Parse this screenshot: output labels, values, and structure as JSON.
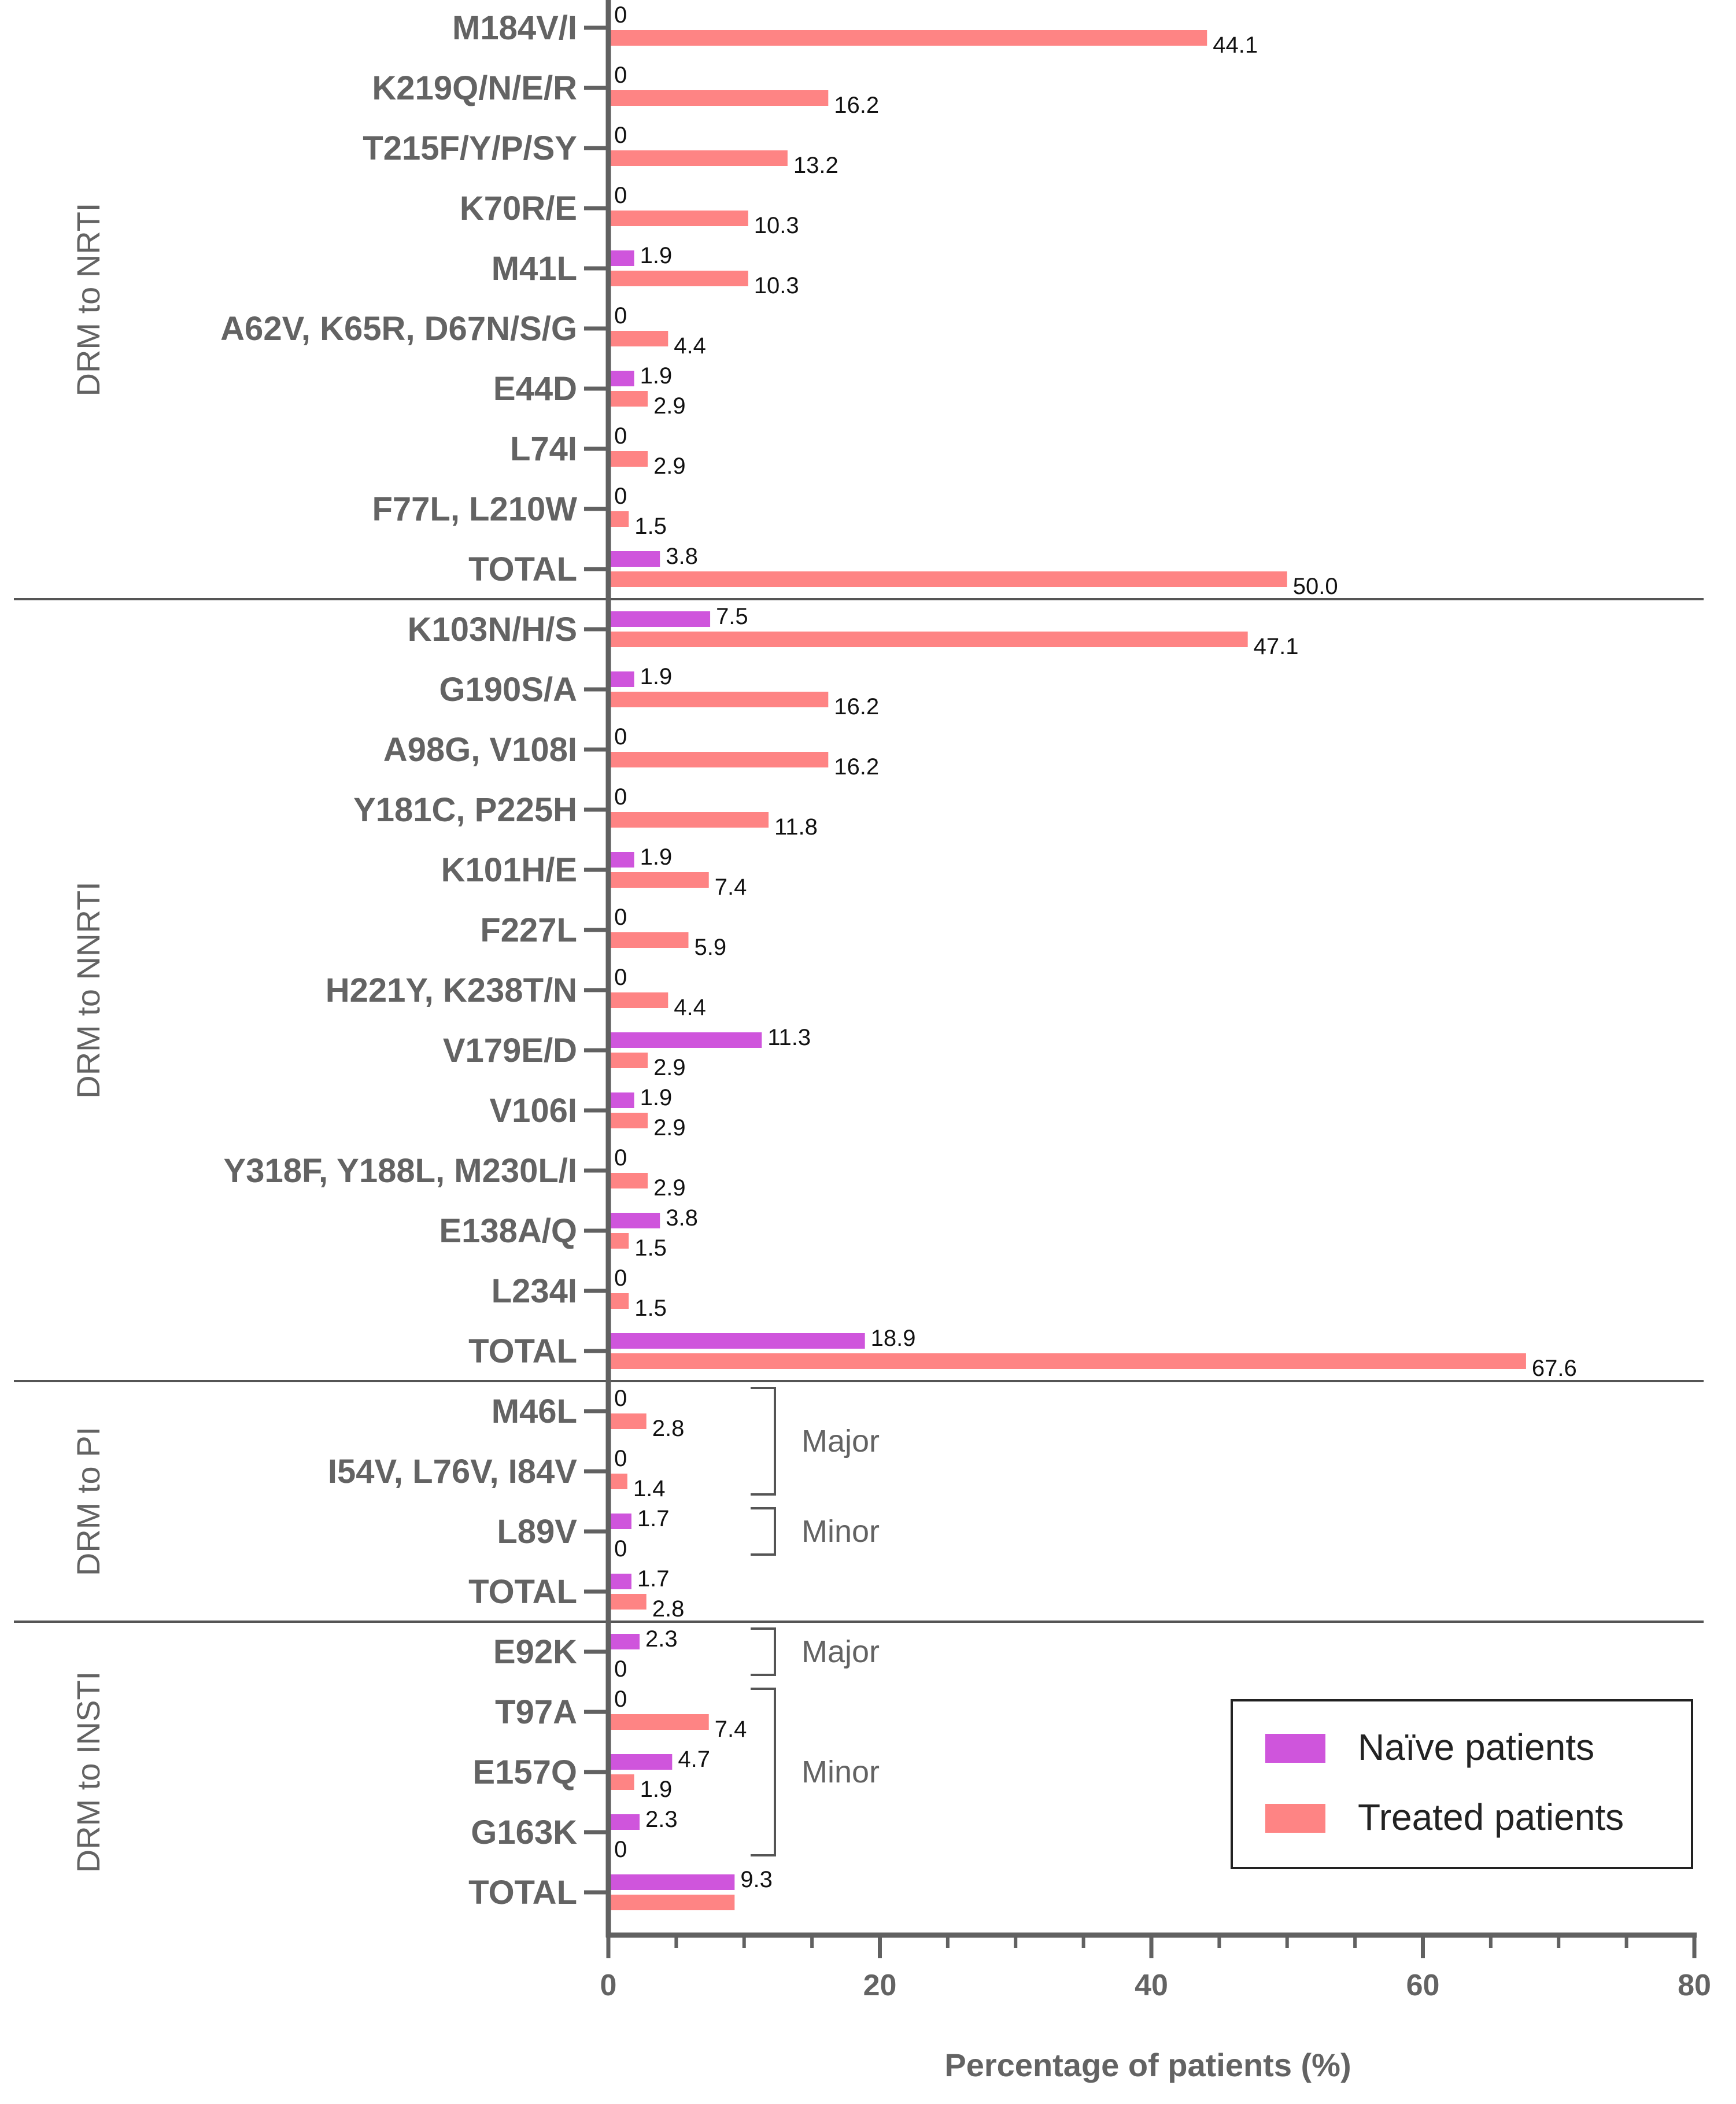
{
  "chart_data": {
    "type": "bar",
    "orientation": "horizontal",
    "xlabel": "Percentage of patients (%)",
    "xlim": [
      0,
      80
    ],
    "xticks": [
      0,
      20,
      40,
      60,
      80
    ],
    "colors": {
      "naive": "#cf55dc",
      "treated": "#fe8484"
    },
    "series": [
      {
        "name": "Naïve patients",
        "key": "naive"
      },
      {
        "name": "Treated patients",
        "key": "treated"
      }
    ],
    "groups": [
      {
        "name": "DRM to NRTI",
        "rows": [
          {
            "category": "M184V/I",
            "naive": 0,
            "treated": 44.1,
            "naive_label": "0",
            "treated_label": "44.1"
          },
          {
            "category": "K219Q/N/E/R",
            "naive": 0,
            "treated": 16.2,
            "naive_label": "0",
            "treated_label": "16.2"
          },
          {
            "category": "T215F/Y/P/SY",
            "naive": 0,
            "treated": 13.2,
            "naive_label": "0",
            "treated_label": "13.2"
          },
          {
            "category": "K70R/E",
            "naive": 0,
            "treated": 10.3,
            "naive_label": "0",
            "treated_label": "10.3"
          },
          {
            "category": "M41L",
            "naive": 1.9,
            "treated": 10.3,
            "naive_label": "1.9",
            "treated_label": "10.3"
          },
          {
            "category": "A62V, K65R, D67N/S/G",
            "naive": 0,
            "treated": 4.4,
            "naive_label": "0",
            "treated_label": "4.4"
          },
          {
            "category": "E44D",
            "naive": 1.9,
            "treated": 2.9,
            "naive_label": "1.9",
            "treated_label": "2.9"
          },
          {
            "category": "L74I",
            "naive": 0,
            "treated": 2.9,
            "naive_label": "0",
            "treated_label": "2.9"
          },
          {
            "category": "F77L, L210W",
            "naive": 0,
            "treated": 1.5,
            "naive_label": "0",
            "treated_label": "1.5"
          },
          {
            "category": "TOTAL",
            "naive": 3.8,
            "treated": 50.0,
            "naive_label": "3.8",
            "treated_label": "50.0"
          }
        ]
      },
      {
        "name": "DRM to NNRTI",
        "rows": [
          {
            "category": "K103N/H/S",
            "naive": 7.5,
            "treated": 47.1,
            "naive_label": "7.5",
            "treated_label": "47.1"
          },
          {
            "category": "G190S/A",
            "naive": 1.9,
            "treated": 16.2,
            "naive_label": "1.9",
            "treated_label": "16.2"
          },
          {
            "category": "A98G, V108I",
            "naive": 0,
            "treated": 16.2,
            "naive_label": "0",
            "treated_label": "16.2"
          },
          {
            "category": "Y181C, P225H",
            "naive": 0,
            "treated": 11.8,
            "naive_label": "0",
            "treated_label": "11.8"
          },
          {
            "category": "K101H/E",
            "naive": 1.9,
            "treated": 7.4,
            "naive_label": "1.9",
            "treated_label": "7.4"
          },
          {
            "category": "F227L",
            "naive": 0,
            "treated": 5.9,
            "naive_label": "0",
            "treated_label": "5.9"
          },
          {
            "category": "H221Y, K238T/N",
            "naive": 0,
            "treated": 4.4,
            "naive_label": "0",
            "treated_label": "4.4"
          },
          {
            "category": "V179E/D",
            "naive": 11.3,
            "treated": 2.9,
            "naive_label": "11.3",
            "treated_label": "2.9"
          },
          {
            "category": "V106I",
            "naive": 1.9,
            "treated": 2.9,
            "naive_label": "1.9",
            "treated_label": "2.9"
          },
          {
            "category": "Y318F, Y188L, M230L/I",
            "naive": 0,
            "treated": 2.9,
            "naive_label": "0",
            "treated_label": "2.9"
          },
          {
            "category": "E138A/Q",
            "naive": 3.8,
            "treated": 1.5,
            "naive_label": "3.8",
            "treated_label": "1.5"
          },
          {
            "category": "L234I",
            "naive": 0,
            "treated": 1.5,
            "naive_label": "0",
            "treated_label": "1.5"
          },
          {
            "category": "TOTAL",
            "naive": 18.9,
            "treated": 67.6,
            "naive_label": "18.9",
            "treated_label": "67.6"
          }
        ]
      },
      {
        "name": "DRM to PI",
        "rows": [
          {
            "category": "M46L",
            "naive": 0,
            "treated": 2.8,
            "naive_label": "0",
            "treated_label": "2.8"
          },
          {
            "category": "I54V, L76V, I84V",
            "naive": 0,
            "treated": 1.4,
            "naive_label": "0",
            "treated_label": "1.4"
          },
          {
            "category": "L89V",
            "naive": 1.7,
            "treated": 0,
            "naive_label": "1.7",
            "treated_label": "0"
          },
          {
            "category": "TOTAL",
            "naive": 1.7,
            "treated": 2.8,
            "naive_label": "1.7",
            "treated_label": "2.8"
          }
        ]
      },
      {
        "name": "DRM to INSTI",
        "rows": [
          {
            "category": "E92K",
            "naive": 2.3,
            "treated": 0,
            "naive_label": "2.3",
            "treated_label": "0"
          },
          {
            "category": "T97A",
            "naive": 0,
            "treated": 7.4,
            "naive_label": "0",
            "treated_label": "7.4"
          },
          {
            "category": "E157Q",
            "naive": 4.7,
            "treated": 1.9,
            "naive_label": "4.7",
            "treated_label": "1.9"
          },
          {
            "category": "G163K",
            "naive": 2.3,
            "treated": 0,
            "naive_label": "2.3",
            "treated_label": "0"
          },
          {
            "category": "TOTAL",
            "naive": 9.3,
            "treated": 9.3,
            "naive_label": "9.3",
            "treated_label": ""
          }
        ]
      }
    ],
    "brackets": [
      {
        "label": "Major",
        "group": "DRM to PI",
        "from": "M46L",
        "to": "I54V, L76V, I84V"
      },
      {
        "label": "Minor",
        "group": "DRM to PI",
        "from": "L89V",
        "to": "L89V"
      },
      {
        "label": "Major",
        "group": "DRM to INSTI",
        "from": "E92K",
        "to": "E92K"
      },
      {
        "label": "Minor",
        "group": "DRM to INSTI",
        "from": "T97A",
        "to": "G163K"
      }
    ],
    "legend_position": "bottom-right"
  }
}
